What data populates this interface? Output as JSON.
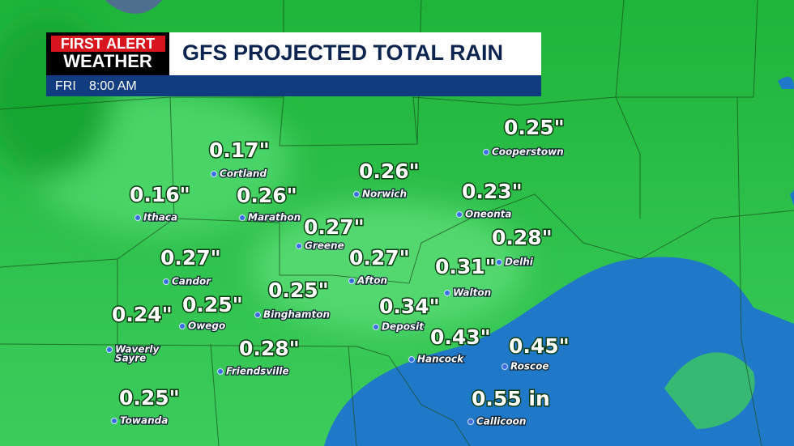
{
  "header": {
    "logo_line1": "FIRST ALERT",
    "logo_line2": "WEATHER",
    "title": "GFS PROJECTED TOTAL RAIN",
    "day": "FRI",
    "time": "8:00 AM"
  },
  "cities": [
    {
      "name": "Cortland",
      "value": "0.17\""
    },
    {
      "name": "Ithaca",
      "value": "0.16\""
    },
    {
      "name": "Marathon",
      "value": "0.26\""
    },
    {
      "name": "Norwich",
      "value": "0.26\""
    },
    {
      "name": "Cooperstown",
      "value": "0.25\""
    },
    {
      "name": "Oneonta",
      "value": "0.23\""
    },
    {
      "name": "Greene",
      "value": "0.27\""
    },
    {
      "name": "Delhi",
      "value": "0.28\""
    },
    {
      "name": "Candor",
      "value": "0.27\""
    },
    {
      "name": "Afton",
      "value": "0.27\""
    },
    {
      "name": "Walton",
      "value": "0.31\""
    },
    {
      "name": "Binghamton",
      "value": "0.25\""
    },
    {
      "name": "Owego",
      "value": "0.25\""
    },
    {
      "name": "Waverly",
      "name_line2": "Sayre",
      "value": "0.24\""
    },
    {
      "name": "Deposit",
      "value": "0.34\""
    },
    {
      "name": "Friendsville",
      "value": "0.28\""
    },
    {
      "name": "Hancock",
      "value": "0.43\""
    },
    {
      "name": "Roscoe",
      "value": "0.45\""
    },
    {
      "name": "Towanda",
      "value": "0.25\""
    },
    {
      "name": "Callicoon",
      "value": "0.55 in"
    }
  ]
}
